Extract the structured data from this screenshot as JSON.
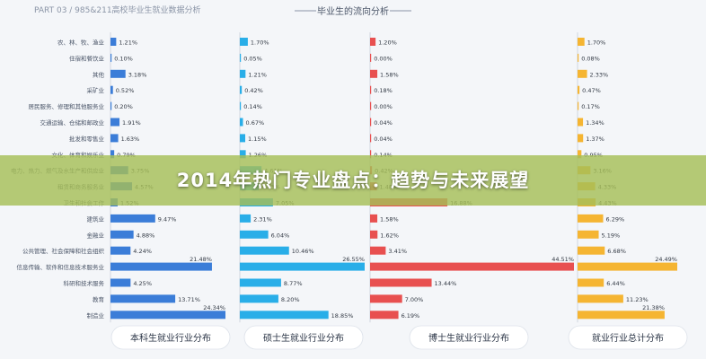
{
  "page": {
    "part_label": "PART 03 / 985&211高校毕业生就业数据分析",
    "section_title": "毕业生的流向分析",
    "banner_title": "2014年热门专业盘点：趋势与未来展望"
  },
  "chart_data": [
    {
      "type": "bar",
      "title": "本科生就业行业分布",
      "color": "#3b7dd8",
      "categories": [
        "农、林、牧、渔业",
        "住宿和餐饮业",
        "其他",
        "采矿业",
        "居民服务、修理和其他服务业",
        "交通运输、仓储和邮政业",
        "批发和零售业",
        "文化、体育和娱乐业",
        "电力、热力、燃气及水生产和供应业",
        "租赁和商务服务业",
        "卫生和社会工作",
        "建筑业",
        "金融业",
        "公共管理、社会保障和社会组织",
        "信息传输、软件和信息技术服务业",
        "科研和技术服务",
        "教育",
        "制造业"
      ],
      "values": [
        1.21,
        0.1,
        3.18,
        0.52,
        0.2,
        1.91,
        1.63,
        0.79,
        3.75,
        4.57,
        1.52,
        9.47,
        4.88,
        4.24,
        21.48,
        4.25,
        13.71,
        24.34
      ],
      "labels": [
        "1.21%",
        "0.10%",
        "3.18%",
        "0.52%",
        "0.20%",
        "1.91%",
        "1.63%",
        "0.79%",
        "3.75%",
        "4.57%",
        "1.52%",
        "9.47%",
        "4.88%",
        "4.24%",
        "21.48%",
        "4.25%",
        "13.71%",
        "24.34%"
      ]
    },
    {
      "type": "bar",
      "title": "硕士生就业行业分布",
      "color": "#29aee8",
      "values": [
        1.7,
        0.05,
        1.21,
        0.42,
        0.14,
        0.67,
        1.15,
        1.26,
        4.61,
        4.03,
        7.05,
        2.31,
        6.04,
        10.46,
        26.55,
        8.77,
        8.2,
        18.85
      ],
      "labels": [
        "1.70%",
        "0.05%",
        "1.21%",
        "0.42%",
        "0.14%",
        "0.67%",
        "1.15%",
        "1.26%",
        "4.61%",
        "4.03%",
        "7.05%",
        "2.31%",
        "6.04%",
        "10.46%",
        "26.55%",
        "8.77%",
        "8.20%",
        "18.85%"
      ]
    },
    {
      "type": "bar",
      "title": "博士生就业行业分布",
      "color": "#e85050",
      "values": [
        1.2,
        0.0,
        1.58,
        0.18,
        0.0,
        0.04,
        0.04,
        0.14,
        0.42,
        1.48,
        16.88,
        1.58,
        1.62,
        3.41,
        44.51,
        13.44,
        7.0,
        6.19
      ],
      "labels": [
        "1.20%",
        "0.00%",
        "1.58%",
        "0.18%",
        "0.00%",
        "0.04%",
        "0.04%",
        "0.14%",
        "0.42%",
        "1.48%",
        "16.88%",
        "1.58%",
        "1.62%",
        "3.41%",
        "44.51%",
        "13.44%",
        "7.00%",
        "6.19%"
      ]
    },
    {
      "type": "bar",
      "title": "就业行业总计分布",
      "color": "#f5b532",
      "values": [
        1.7,
        0.08,
        2.33,
        0.47,
        0.17,
        1.34,
        1.37,
        0.95,
        3.16,
        4.33,
        4.43,
        6.29,
        5.19,
        6.68,
        24.49,
        6.44,
        11.23,
        21.38
      ],
      "labels": [
        "1.70%",
        "0.08%",
        "2.33%",
        "0.47%",
        "0.17%",
        "1.34%",
        "1.37%",
        "0.95%",
        "3.16%",
        "4.33%",
        "4.43%",
        "6.29%",
        "5.19%",
        "6.68%",
        "24.49%",
        "6.44%",
        "11.23%",
        "21.38%"
      ]
    }
  ]
}
